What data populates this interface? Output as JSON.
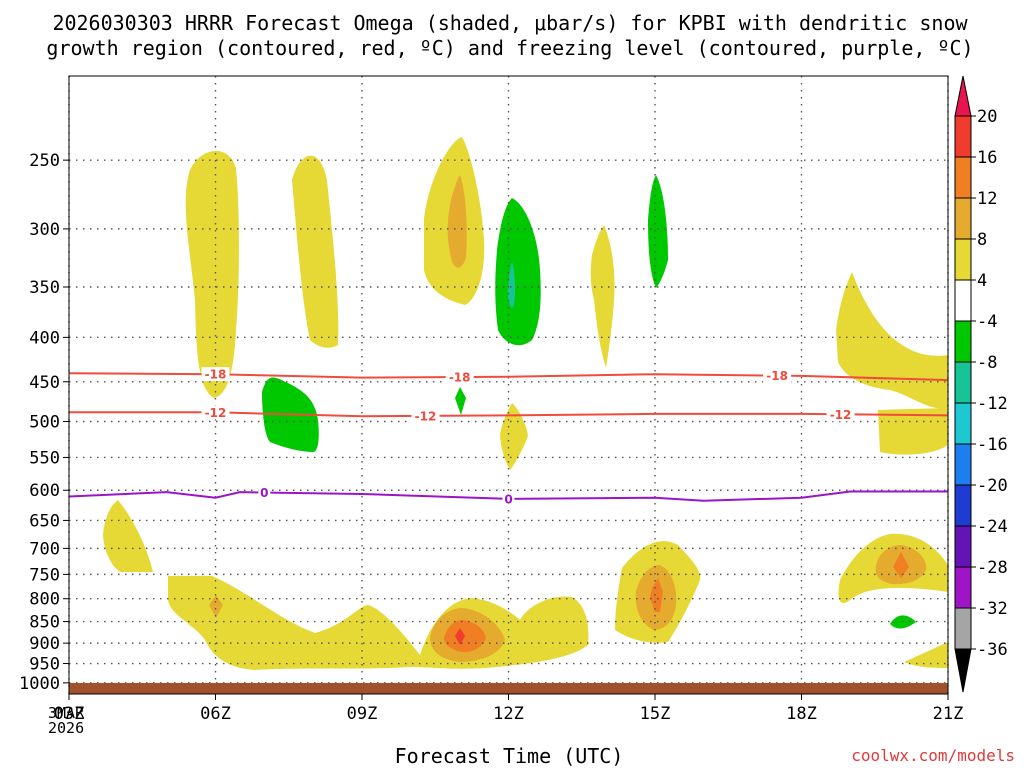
{
  "chart_data": {
    "type": "time-height contour",
    "title_lines": [
      "2026030303 HRRR Forecast Omega (shaded, μbar/s) for KPBI with dendritic snow",
      "growth region (contoured, red, ºC) and freezing level (contoured, purple, ºC)"
    ],
    "xlabel": "Forecast Time (UTC)",
    "x_ticks": [
      "03Z",
      "06Z",
      "09Z",
      "12Z",
      "15Z",
      "18Z",
      "21Z"
    ],
    "x_tick_hours": [
      3,
      6,
      9,
      12,
      15,
      18,
      21
    ],
    "x_date_line1": "3MAR",
    "x_date_line2": "2026",
    "xlim": [
      3,
      21
    ],
    "y_ticks": [
      250,
      300,
      350,
      400,
      450,
      500,
      550,
      600,
      650,
      700,
      750,
      800,
      850,
      900,
      950,
      1000
    ],
    "ylim_hpa": [
      200,
      1030
    ],
    "watermark": "coolwx.com/models",
    "colorbar": {
      "labels": [
        "20",
        "16",
        "12",
        "8",
        "4",
        "-4",
        "-8",
        "-12",
        "-16",
        "-20",
        "-24",
        "-28",
        "-32",
        "-36"
      ],
      "bins": [
        {
          "color": "#e8134f"
        },
        {
          "color": "#f03c2e"
        },
        {
          "color": "#f07e23"
        },
        {
          "color": "#e5ab2e"
        },
        {
          "color": "#e6d936"
        },
        {
          "color": "#ffffff"
        },
        {
          "color": "#00c800"
        },
        {
          "color": "#16c496"
        },
        {
          "color": "#1ec8d2"
        },
        {
          "color": "#1e7ef0"
        },
        {
          "color": "#1e3cd2"
        },
        {
          "color": "#6414b4"
        },
        {
          "color": "#a014c8"
        },
        {
          "color": "#a5a5a5"
        },
        {
          "color": "#000000"
        }
      ]
    },
    "contours": [
      {
        "name": "minus18-isotherm",
        "label": "-18",
        "color": "#f04b3c",
        "points": [
          [
            3,
            440
          ],
          [
            6,
            441
          ],
          [
            9,
            445
          ],
          [
            12,
            444
          ],
          [
            15,
            441
          ],
          [
            18,
            443
          ],
          [
            21,
            448
          ]
        ],
        "label_hours": [
          6,
          11,
          17.5
        ]
      },
      {
        "name": "minus12-isotherm",
        "label": "-12",
        "color": "#f04b3c",
        "points": [
          [
            3,
            488
          ],
          [
            6,
            488
          ],
          [
            9,
            493
          ],
          [
            12,
            492
          ],
          [
            15,
            490
          ],
          [
            18,
            490
          ],
          [
            21,
            492
          ]
        ],
        "label_hours": [
          6,
          10.3,
          18.8
        ]
      },
      {
        "name": "freezing-level",
        "label": "0",
        "color": "#9b14c8",
        "points": [
          [
            3,
            610
          ],
          [
            5,
            603
          ],
          [
            6,
            612
          ],
          [
            6.5,
            603
          ],
          [
            9,
            606
          ],
          [
            12,
            614
          ],
          [
            15,
            612
          ],
          [
            16,
            617
          ],
          [
            18,
            612
          ],
          [
            19,
            602
          ],
          [
            21,
            602
          ]
        ],
        "label_hours": [
          7,
          12
        ]
      }
    ],
    "omega_features": [
      {
        "sign": "ascent",
        "value_range": [
          4,
          8
        ],
        "center": [
          6,
          370
        ],
        "half_width_h": 0.5,
        "half_depth_hpa": 120
      },
      {
        "sign": "ascent",
        "value_range": [
          4,
          8
        ],
        "center": [
          8,
          338
        ],
        "half_width_h": 0.45,
        "half_depth_hpa": 85
      },
      {
        "sign": "ascent",
        "value_range": [
          4,
          12
        ],
        "center": [
          11,
          305
        ],
        "half_width_h": 0.7,
        "half_depth_hpa": 75
      },
      {
        "sign": "ascent",
        "value_range": [
          4,
          8
        ],
        "center": [
          14,
          375
        ],
        "half_width_h": 0.25,
        "half_depth_hpa": 70
      },
      {
        "sign": "ascent",
        "value_range": [
          4,
          8
        ],
        "center": [
          20.3,
          430
        ],
        "half_width_h": 1.0,
        "half_depth_hpa": 95
      },
      {
        "sign": "ascent",
        "value_range": [
          4,
          8
        ],
        "center": [
          12.1,
          540
        ],
        "half_width_h": 0.25,
        "half_depth_hpa": 40
      },
      {
        "sign": "ascent",
        "value_range": [
          4,
          8
        ],
        "center": [
          3.7,
          700
        ],
        "half_width_h": 0.5,
        "half_depth_hpa": 60
      },
      {
        "sign": "ascent",
        "value_range": [
          4,
          20
        ],
        "center": [
          8.3,
          865
        ],
        "half_width_h": 4.2,
        "half_depth_hpa": 90
      },
      {
        "sign": "ascent",
        "value_range": [
          4,
          16
        ],
        "center": [
          15,
          810
        ],
        "half_width_h": 0.8,
        "half_depth_hpa": 100
      },
      {
        "sign": "ascent",
        "value_range": [
          4,
          16
        ],
        "center": [
          20.1,
          760
        ],
        "half_width_h": 0.9,
        "half_depth_hpa": 55
      },
      {
        "sign": "ascent",
        "value_range": [
          4,
          8
        ],
        "center": [
          20.6,
          930
        ],
        "half_width_h": 0.5,
        "half_depth_hpa": 25
      },
      {
        "sign": "descent",
        "value_range": [
          -12,
          -4
        ],
        "center": [
          12.1,
          360
        ],
        "half_width_h": 0.5,
        "half_depth_hpa": 70
      },
      {
        "sign": "descent",
        "value_range": [
          -8,
          -4
        ],
        "center": [
          15,
          320
        ],
        "half_width_h": 0.2,
        "half_depth_hpa": 55
      },
      {
        "sign": "descent",
        "value_range": [
          -8,
          -4
        ],
        "center": [
          7.6,
          510
        ],
        "half_width_h": 0.45,
        "half_depth_hpa": 50
      },
      {
        "sign": "descent",
        "value_range": [
          -8,
          -4
        ],
        "center": [
          11,
          495
        ],
        "half_width_h": 0.1,
        "half_depth_hpa": 20
      },
      {
        "sign": "descent",
        "value_range": [
          -8,
          -4
        ],
        "center": [
          20,
          870
        ],
        "half_width_h": 0.2,
        "half_depth_hpa": 12
      }
    ]
  }
}
